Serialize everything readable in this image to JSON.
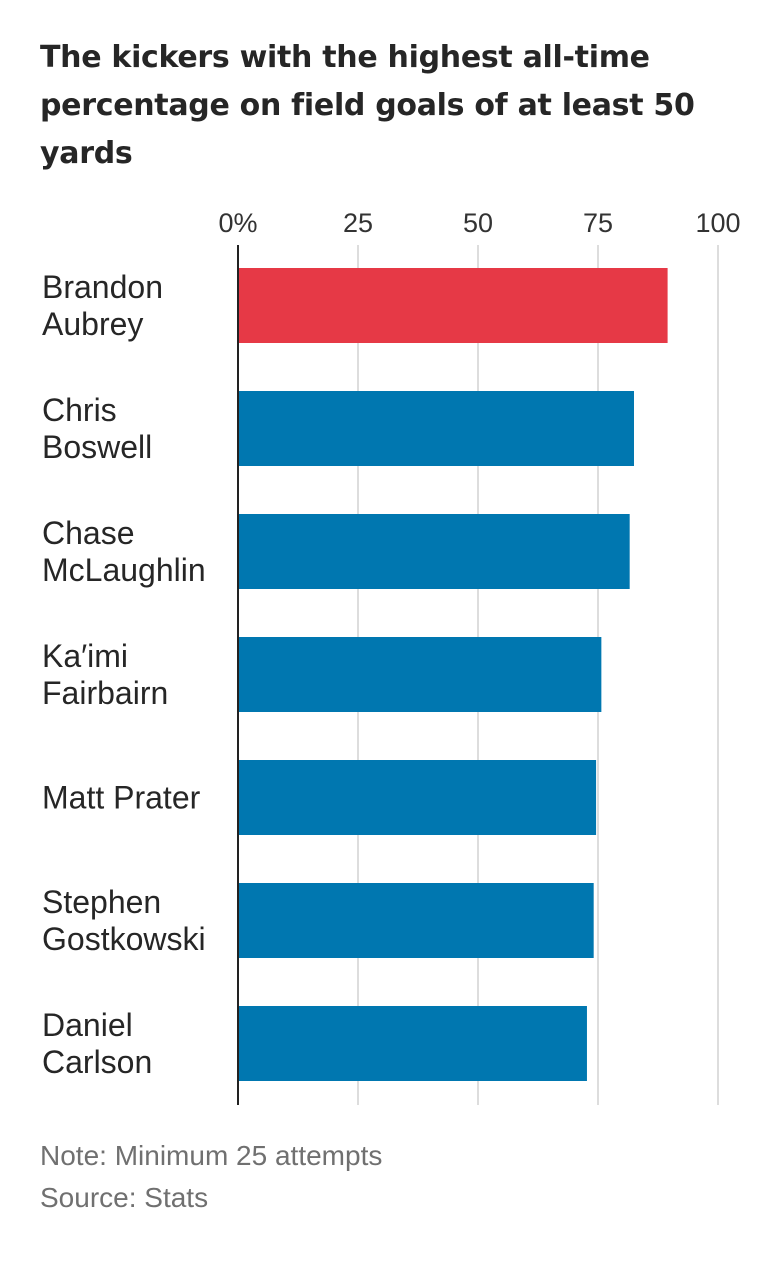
{
  "chart_data": {
    "type": "bar",
    "orientation": "horizontal",
    "title": "The kickers with the highest all-time percentage on field goals of at least 50 yards",
    "categories": [
      [
        "Brandon",
        "Aubrey"
      ],
      [
        "Chris",
        "Boswell"
      ],
      [
        "Chase",
        "McLaughlin"
      ],
      [
        "Ka′imi",
        "Fairbairn"
      ],
      [
        "Matt Prater"
      ],
      [
        "Stephen",
        "Gostkowski"
      ],
      [
        "Daniel",
        "Carlson"
      ]
    ],
    "values": [
      89.5,
      82.5,
      81.6,
      75.7,
      74.6,
      74.1,
      72.7
    ],
    "xlim": [
      0,
      100
    ],
    "xticks": [
      0,
      25,
      50,
      75,
      100
    ],
    "xtick_labels": [
      "0%",
      "25",
      "50",
      "75",
      "100"
    ],
    "highlight_index": 0,
    "colors": {
      "highlight": "#E63946",
      "default": "#0077B0",
      "grid": "#dddddd",
      "axis": "#222222"
    },
    "grid": true
  },
  "notes": {
    "note": "Note: Minimum 25 attempts",
    "source": "Source: Stats"
  }
}
